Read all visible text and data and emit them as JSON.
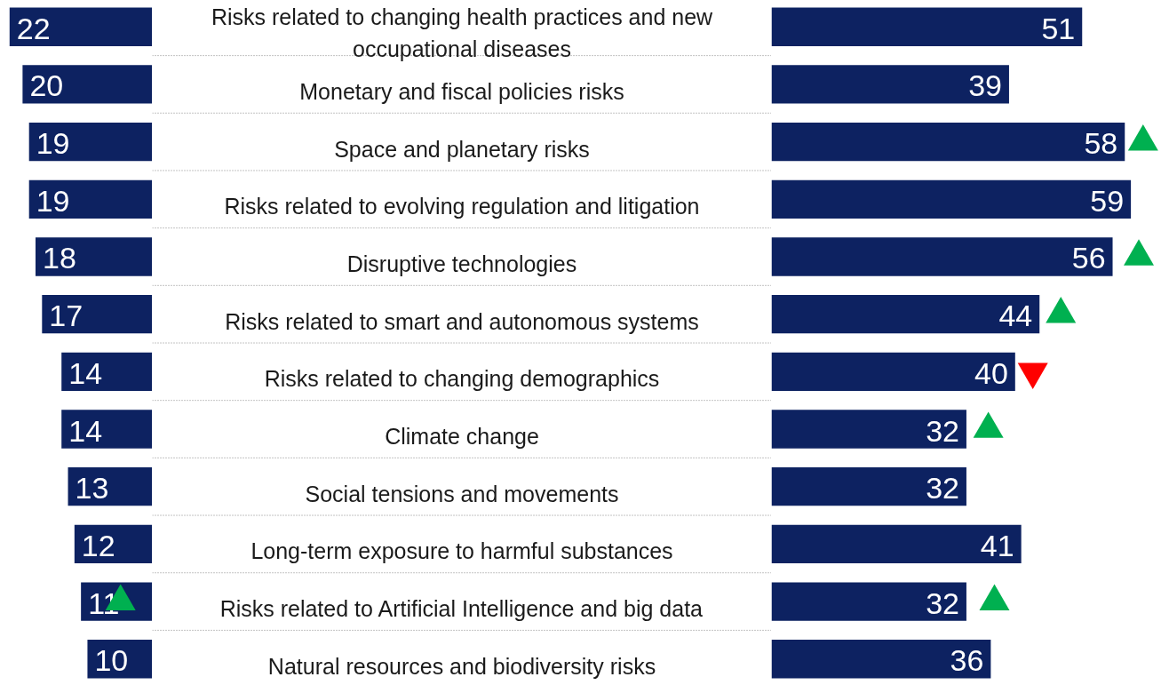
{
  "chart_data": [
    {
      "type": "bar",
      "orientation": "horizontal",
      "categories": [
        "Risks related to changing health practices and new\noccupational diseases",
        "Monetary and fiscal policies risks",
        "Space and planetary risks",
        "Risks related to evolving regulation and litigation",
        "Disruptive technologies",
        "Risks related to smart and autonomous systems",
        "Risks related to changing demographics",
        "Climate change",
        "Social tensions and movements",
        "Long-term exposure to harmful substances",
        "Risks related to Artificial Intelligence and big data",
        "Natural resources and biodiversity risks"
      ],
      "series": [
        {
          "color": "#0d2261",
          "values": [
            22,
            20,
            19,
            19,
            18,
            17,
            14,
            14,
            13,
            12,
            11,
            10
          ],
          "value_labels": [
            "22",
            "20",
            "19",
            "19",
            "18",
            "17",
            "14",
            "14",
            "13",
            "12",
            "11",
            "10"
          ]
        },
        {
          "type": "scatter",
          "marker": "triangle",
          "color": "#00b050",
          "values": [
            null,
            null,
            null,
            null,
            null,
            null,
            null,
            null,
            null,
            null,
            4.9,
            null
          ]
        }
      ],
      "grid": "y",
      "tick_labels": "y"
    },
    {
      "type": "bar",
      "orientation": "horizontal",
      "categories": [
        null,
        null,
        null,
        null,
        null,
        null,
        null,
        null,
        null,
        null,
        null,
        null
      ],
      "series": [
        {
          "color": "#0d2261",
          "values": [
            51,
            39,
            58,
            59,
            56,
            44,
            40,
            32,
            32,
            41,
            32,
            36
          ],
          "value_labels": [
            "51",
            "39",
            "58",
            "59",
            "56",
            "44",
            "40",
            "32",
            "32",
            "41",
            "32",
            "36"
          ]
        },
        {
          "type": "scatter",
          "marker": "triangle",
          "color": "#00b050",
          "values": [
            null,
            null,
            61.0,
            null,
            60.3,
            47.5,
            null,
            35.6,
            null,
            null,
            36.6,
            null
          ]
        },
        {
          "type": "scatter",
          "color": "#ff0000",
          "values": [
            null,
            null,
            null,
            null,
            null,
            null,
            42.9,
            null,
            null,
            null,
            null,
            null
          ]
        }
      ],
      "tick_labels": false
    }
  ]
}
